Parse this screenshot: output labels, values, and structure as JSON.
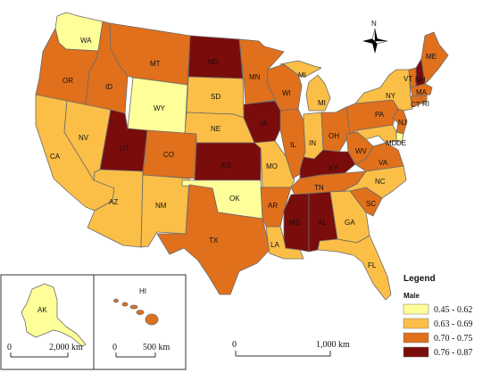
{
  "legend": {
    "title": "Legend",
    "subtitle": "Male",
    "classes": [
      {
        "label": "0.45 - 0.62",
        "color": "#ffff99"
      },
      {
        "label": "0.63 - 0.69",
        "color": "#fbbf47"
      },
      {
        "label": "0.70 - 0.75",
        "color": "#e0701c"
      },
      {
        "label": "0.76 - 0.87",
        "color": "#7a0c0c"
      }
    ]
  },
  "north_arrow": {
    "label": "N",
    "icon": "compass-rose-icon"
  },
  "scales": {
    "main": {
      "start": "0",
      "end": "1,000 km"
    },
    "alaska": {
      "start": "0",
      "end": "2,000 km"
    },
    "hawaii": {
      "start": "0",
      "end": "500 km"
    }
  },
  "states": [
    {
      "abbr": "WA",
      "class": 0
    },
    {
      "abbr": "OR",
      "class": 2
    },
    {
      "abbr": "CA",
      "class": 1
    },
    {
      "abbr": "ID",
      "class": 2
    },
    {
      "abbr": "NV",
      "class": 1
    },
    {
      "abbr": "MT",
      "class": 2
    },
    {
      "abbr": "WY",
      "class": 0
    },
    {
      "abbr": "UT",
      "class": 3
    },
    {
      "abbr": "AZ",
      "class": 1
    },
    {
      "abbr": "CO",
      "class": 2
    },
    {
      "abbr": "NM",
      "class": 1
    },
    {
      "abbr": "ND",
      "class": 3
    },
    {
      "abbr": "SD",
      "class": 1
    },
    {
      "abbr": "NE",
      "class": 1
    },
    {
      "abbr": "KS",
      "class": 3
    },
    {
      "abbr": "OK",
      "class": 0
    },
    {
      "abbr": "TX",
      "class": 2
    },
    {
      "abbr": "MN",
      "class": 2
    },
    {
      "abbr": "IA",
      "class": 3
    },
    {
      "abbr": "MO",
      "class": 1
    },
    {
      "abbr": "AR",
      "class": 2
    },
    {
      "abbr": "LA",
      "class": 1
    },
    {
      "abbr": "WI",
      "class": 2
    },
    {
      "abbr": "IL",
      "class": 2
    },
    {
      "abbr": "MI",
      "class": 1
    },
    {
      "abbr": "IN",
      "class": 1
    },
    {
      "abbr": "OH",
      "class": 2
    },
    {
      "abbr": "KY",
      "class": 3
    },
    {
      "abbr": "TN",
      "class": 2
    },
    {
      "abbr": "MS",
      "class": 3
    },
    {
      "abbr": "AL",
      "class": 3
    },
    {
      "abbr": "GA",
      "class": 1
    },
    {
      "abbr": "FL",
      "class": 1
    },
    {
      "abbr": "SC",
      "class": 2
    },
    {
      "abbr": "NC",
      "class": 1
    },
    {
      "abbr": "VA",
      "class": 2
    },
    {
      "abbr": "WV",
      "class": 2
    },
    {
      "abbr": "PA",
      "class": 2
    },
    {
      "abbr": "NY",
      "class": 1
    },
    {
      "abbr": "VT",
      "class": 2
    },
    {
      "abbr": "NH",
      "class": 3
    },
    {
      "abbr": "ME",
      "class": 2
    },
    {
      "abbr": "MA",
      "class": 2
    },
    {
      "abbr": "CT",
      "class": 2
    },
    {
      "abbr": "RI",
      "class": 2
    },
    {
      "abbr": "NJ",
      "class": 2
    },
    {
      "abbr": "DE",
      "class": 0
    },
    {
      "abbr": "MD",
      "class": 1
    },
    {
      "abbr": "AK",
      "class": 0
    },
    {
      "abbr": "HI",
      "class": 2
    }
  ]
}
